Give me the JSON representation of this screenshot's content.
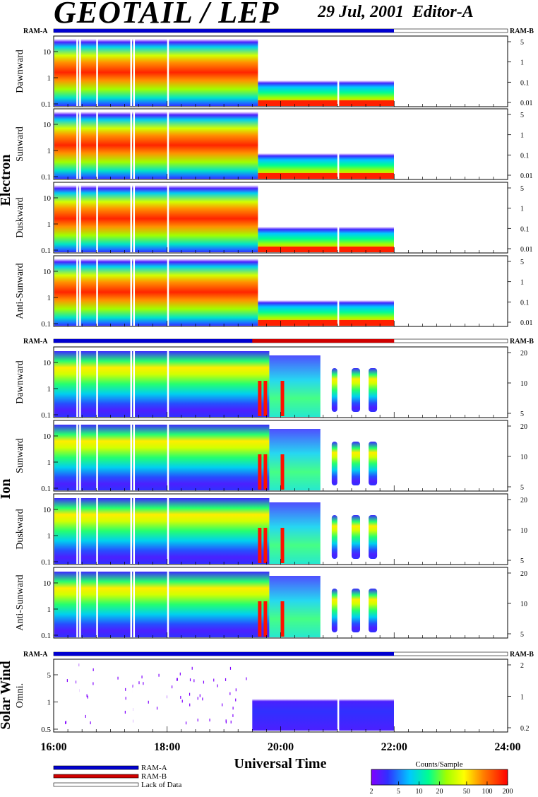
{
  "header": {
    "title": "GEOTAIL / LEP",
    "date": "29 Jul, 2001",
    "editor": "Editor-A"
  },
  "ram_labels": {
    "left": "RAM-A",
    "right": "RAM-B"
  },
  "groups": [
    {
      "name": "Electron"
    },
    {
      "name": "Ion"
    },
    {
      "name": "Solar Wind"
    }
  ],
  "panels": [
    {
      "group": "Electron",
      "label": "Dawnward",
      "left_ticks": [
        "10",
        "1",
        "0.1"
      ],
      "right_ticks": [
        "5",
        "1",
        "0.1",
        "0.01"
      ]
    },
    {
      "group": "Electron",
      "label": "Sunward",
      "left_ticks": [
        "10",
        "1",
        "0.1"
      ],
      "right_ticks": [
        "5",
        "1",
        "0.1",
        "0.01"
      ]
    },
    {
      "group": "Electron",
      "label": "Duskward",
      "left_ticks": [
        "10",
        "1",
        "0.1"
      ],
      "right_ticks": [
        "5",
        "1",
        "0.1",
        "0.01"
      ]
    },
    {
      "group": "Electron",
      "label": "Anti-Sunward",
      "left_ticks": [
        "10",
        "1",
        "0.1"
      ],
      "right_ticks": [
        "5",
        "1",
        "0.1",
        "0.01"
      ]
    },
    {
      "group": "Ion",
      "label": "Dawnward",
      "left_ticks": [
        "10",
        "1",
        "0.1"
      ],
      "right_ticks": [
        "20",
        "10",
        "5"
      ]
    },
    {
      "group": "Ion",
      "label": "Sunward",
      "left_ticks": [
        "10",
        "1",
        "0.1"
      ],
      "right_ticks": [
        "20",
        "10",
        "5"
      ]
    },
    {
      "group": "Ion",
      "label": "Duskward",
      "left_ticks": [
        "10",
        "1",
        "0.1"
      ],
      "right_ticks": [
        "20",
        "10",
        "5"
      ]
    },
    {
      "group": "Ion",
      "label": "Anti-Sunward",
      "left_ticks": [
        "10",
        "1",
        "0.1"
      ],
      "right_ticks": [
        "20",
        "10",
        "5"
      ]
    },
    {
      "group": "Solar Wind",
      "label": "Omni.",
      "left_ticks": [
        "5",
        "1",
        "0.5"
      ],
      "right_ticks": [
        "2",
        "1",
        "0.2"
      ]
    }
  ],
  "x_axis": {
    "label": "Universal Time",
    "ticks": [
      "16:00",
      "18:00",
      "20:00",
      "22:00",
      "24:00"
    ]
  },
  "legend": {
    "items": [
      {
        "label": "RAM-A",
        "color": "#0000d0"
      },
      {
        "label": "RAM-B",
        "color": "#d00000"
      },
      {
        "label": "Lack of Data",
        "color": "#ffffff"
      }
    ]
  },
  "colorbar": {
    "title": "Counts/Sample",
    "ticks": [
      "2",
      "5",
      "10",
      "20",
      "50",
      "100",
      "200"
    ]
  },
  "chart_data": {
    "type": "heatmap",
    "title": "GEOTAIL / LEP",
    "subtitle": "29 Jul, 2001",
    "xlabel": "Universal Time",
    "x_range": [
      "16:00",
      "24:00"
    ],
    "data_end": "22:00",
    "colorbar_range": [
      2,
      200
    ],
    "colorbar_scale": "log",
    "ram_b_interval": [
      "19:30",
      "22:00"
    ],
    "ram_b_interval_group": "Ion"
  }
}
